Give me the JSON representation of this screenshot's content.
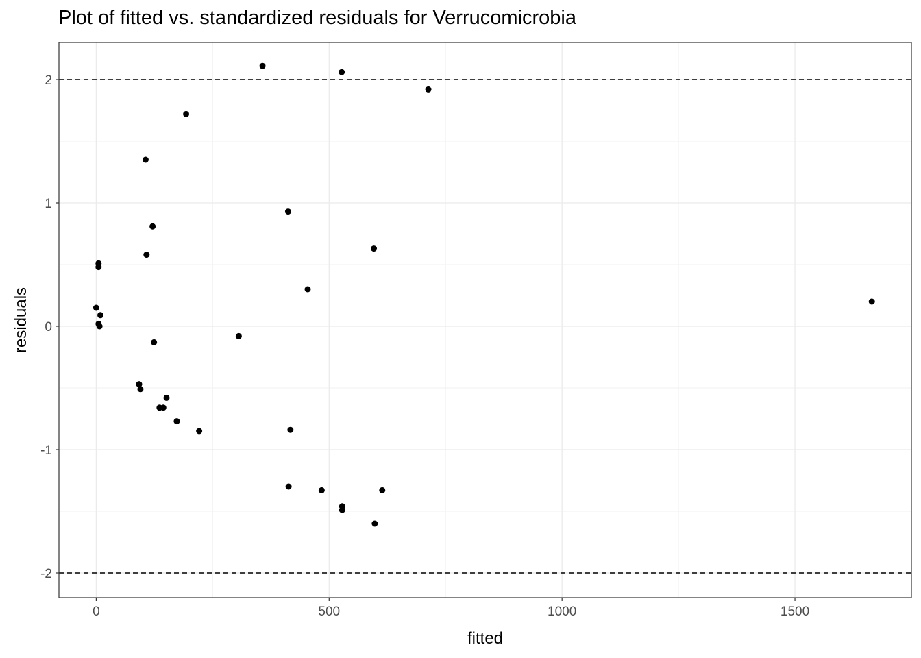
{
  "chart_data": {
    "type": "scatter",
    "title": "Plot of fitted vs. standardized residuals for Verrucomicrobia",
    "xlabel": "fitted",
    "ylabel": "residuals",
    "xlim": [
      -80,
      1750
    ],
    "ylim": [
      -2.2,
      2.3
    ],
    "xticks": [
      0,
      500,
      1000,
      1500
    ],
    "xtick_labels": [
      "0",
      "500",
      "1000",
      "1500"
    ],
    "yticks": [
      -2,
      -1,
      0,
      1,
      2
    ],
    "ytick_labels": [
      "-2",
      "-1",
      "0",
      "1",
      "2"
    ],
    "grid": true,
    "reference_lines": [
      2,
      -2
    ],
    "points": [
      {
        "x": 0,
        "y": 0.15
      },
      {
        "x": 5,
        "y": 0.51
      },
      {
        "x": 5,
        "y": 0.48
      },
      {
        "x": 5,
        "y": 0.02
      },
      {
        "x": 7,
        "y": 0.0
      },
      {
        "x": 9,
        "y": 0.09
      },
      {
        "x": 92,
        "y": -0.47
      },
      {
        "x": 95,
        "y": -0.51
      },
      {
        "x": 106,
        "y": 1.35
      },
      {
        "x": 108,
        "y": 0.58
      },
      {
        "x": 121,
        "y": 0.81
      },
      {
        "x": 124,
        "y": -0.13
      },
      {
        "x": 136,
        "y": -0.66
      },
      {
        "x": 144,
        "y": -0.66
      },
      {
        "x": 151,
        "y": -0.58
      },
      {
        "x": 173,
        "y": -0.77
      },
      {
        "x": 193,
        "y": 1.72
      },
      {
        "x": 221,
        "y": -0.85
      },
      {
        "x": 306,
        "y": -0.08
      },
      {
        "x": 357,
        "y": 2.11
      },
      {
        "x": 412,
        "y": 0.93
      },
      {
        "x": 413,
        "y": -1.3
      },
      {
        "x": 417,
        "y": -0.84
      },
      {
        "x": 454,
        "y": 0.3
      },
      {
        "x": 484,
        "y": -1.33
      },
      {
        "x": 527,
        "y": 2.06
      },
      {
        "x": 528,
        "y": -1.46
      },
      {
        "x": 528,
        "y": -1.49
      },
      {
        "x": 596,
        "y": 0.63
      },
      {
        "x": 598,
        "y": -1.6
      },
      {
        "x": 614,
        "y": -1.33
      },
      {
        "x": 713,
        "y": 1.92
      },
      {
        "x": 1665,
        "y": 0.2
      }
    ]
  }
}
